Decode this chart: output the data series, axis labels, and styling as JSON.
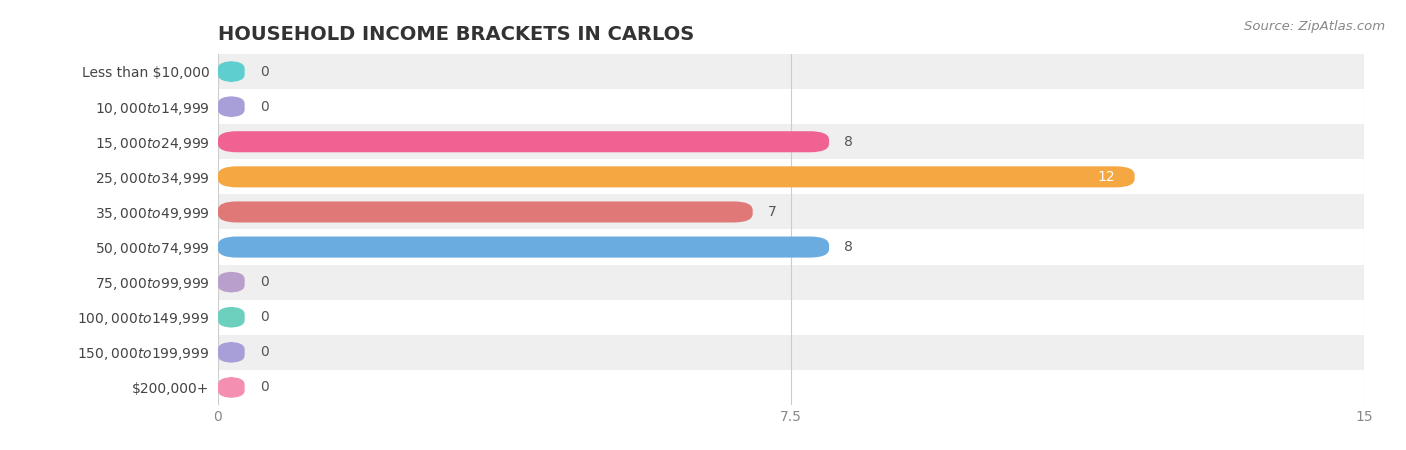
{
  "title": "HOUSEHOLD INCOME BRACKETS IN CARLOS",
  "source": "Source: ZipAtlas.com",
  "categories": [
    "Less than $10,000",
    "$10,000 to $14,999",
    "$15,000 to $24,999",
    "$25,000 to $34,999",
    "$35,000 to $49,999",
    "$50,000 to $74,999",
    "$75,000 to $99,999",
    "$100,000 to $149,999",
    "$150,000 to $199,999",
    "$200,000+"
  ],
  "values": [
    0,
    0,
    8,
    12,
    7,
    8,
    0,
    0,
    0,
    0
  ],
  "bar_colors": [
    "#5ecece",
    "#a89fd8",
    "#f06292",
    "#f5a742",
    "#e07878",
    "#6aabe0",
    "#b89fcc",
    "#6dcfbe",
    "#a89fd8",
    "#f48fb1"
  ],
  "bg_row_colors": [
    "#efefef",
    "#ffffff"
  ],
  "xlim": [
    0,
    15
  ],
  "xticks": [
    0,
    7.5,
    15
  ],
  "value_label_color": "#555555",
  "value_label_color_inside": "#ffffff",
  "title_fontsize": 14,
  "label_fontsize": 10,
  "tick_fontsize": 10,
  "source_fontsize": 9.5,
  "background_color": "#ffffff",
  "bar_height": 0.6,
  "small_bar_width": 0.35
}
